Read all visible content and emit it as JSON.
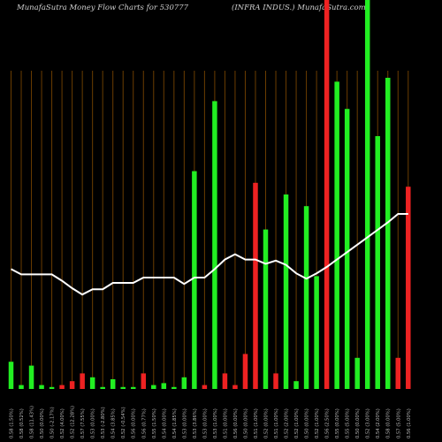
{
  "header": {
    "left": "MunafaSutra  Money Flow  Charts for 530777",
    "right": "(INFRA INDUS.) MunafaSutra.com"
  },
  "colors": {
    "background": "#000000",
    "grid": "#6b3d00",
    "up": "#22ee22",
    "down": "#ee2222",
    "line": "#ffffff",
    "label": "#bbbbbb"
  },
  "chart_data": {
    "type": "bar",
    "title": "MunafaSutra  Money Flow  Charts for 530777",
    "subtitle": "(INFRA INDUS.) MunafaSutra.com",
    "categories": [
      "0.58 (1.50%)",
      "0.58 (0.52%)",
      "0.58 (11.43%)",
      "0.50 (0.00%)",
      "0.50 (-2.17%)",
      "0.52 (4.00%)",
      "0.52 (12.28%)",
      "0.57 (7.55%)",
      "0.53 (0.00%)",
      "0.53 (-2.80%)",
      "0.54 (3.85%)",
      "0.52 (-0.54%)",
      "0.56 (0.00%)",
      "0.56 (0.77%)",
      "0.55 (1.50%)",
      "0.54 (0.00%)",
      "0.54 (1.85%)",
      "0.53 (0.00%)",
      "0.53 (3.86%)",
      "0.53 (0.00%)",
      "0.53 (1.00%)",
      "0.51 (0.00%)",
      "0.56 (0.00%)",
      "0.50 (0.00%)",
      "0.51 (1.00%)",
      "0.52 (0.00%)",
      "0.51 (1.00%)",
      "0.52 (2.00%)",
      "0.52 (1.00%)",
      "0.50 (0.00%)",
      "0.52 (1.00%)",
      "0.56 (2.50%)",
      "0.55 (0.00%)",
      "0.55 (5.00%)",
      "0.50 (0.00%)",
      "0.52 (3.00%)",
      "0.54 (2.00%)",
      "0.58 (0.00%)",
      "0.57 (5.00%)",
      "0.56 (1.00%)"
    ],
    "volume": [
      7,
      1,
      6,
      1,
      0.5,
      1,
      2,
      4,
      3,
      0.5,
      2.5,
      0.5,
      0.5,
      4,
      1,
      1.5,
      0.5,
      3,
      56,
      1,
      74,
      4,
      1,
      9,
      53,
      41,
      4,
      50,
      2,
      47,
      29,
      100,
      79,
      72,
      8,
      100,
      65,
      80,
      8,
      52
    ],
    "direction": [
      "up",
      "up",
      "up",
      "up",
      "up",
      "down",
      "down",
      "down",
      "up",
      "up",
      "up",
      "up",
      "up",
      "down",
      "up",
      "up",
      "up",
      "up",
      "up",
      "down",
      "up",
      "down",
      "down",
      "down",
      "down",
      "up",
      "down",
      "up",
      "up",
      "up",
      "up",
      "down",
      "up",
      "up",
      "up",
      "up",
      "up",
      "up",
      "down",
      "down"
    ],
    "money_flow_line": [
      44,
      41.5,
      41.5,
      41.5,
      41.5,
      38.5,
      35,
      32,
      34.5,
      34.5,
      37.5,
      37.5,
      37.5,
      40,
      40,
      40,
      40,
      37,
      40,
      40,
      44,
      48.5,
      51,
      48.5,
      48.5,
      46.5,
      48,
      46,
      42,
      39.5,
      42,
      45,
      48.5,
      52,
      55.5,
      59,
      62.5,
      66,
      70,
      70
    ],
    "ylim": [
      0,
      100
    ]
  }
}
